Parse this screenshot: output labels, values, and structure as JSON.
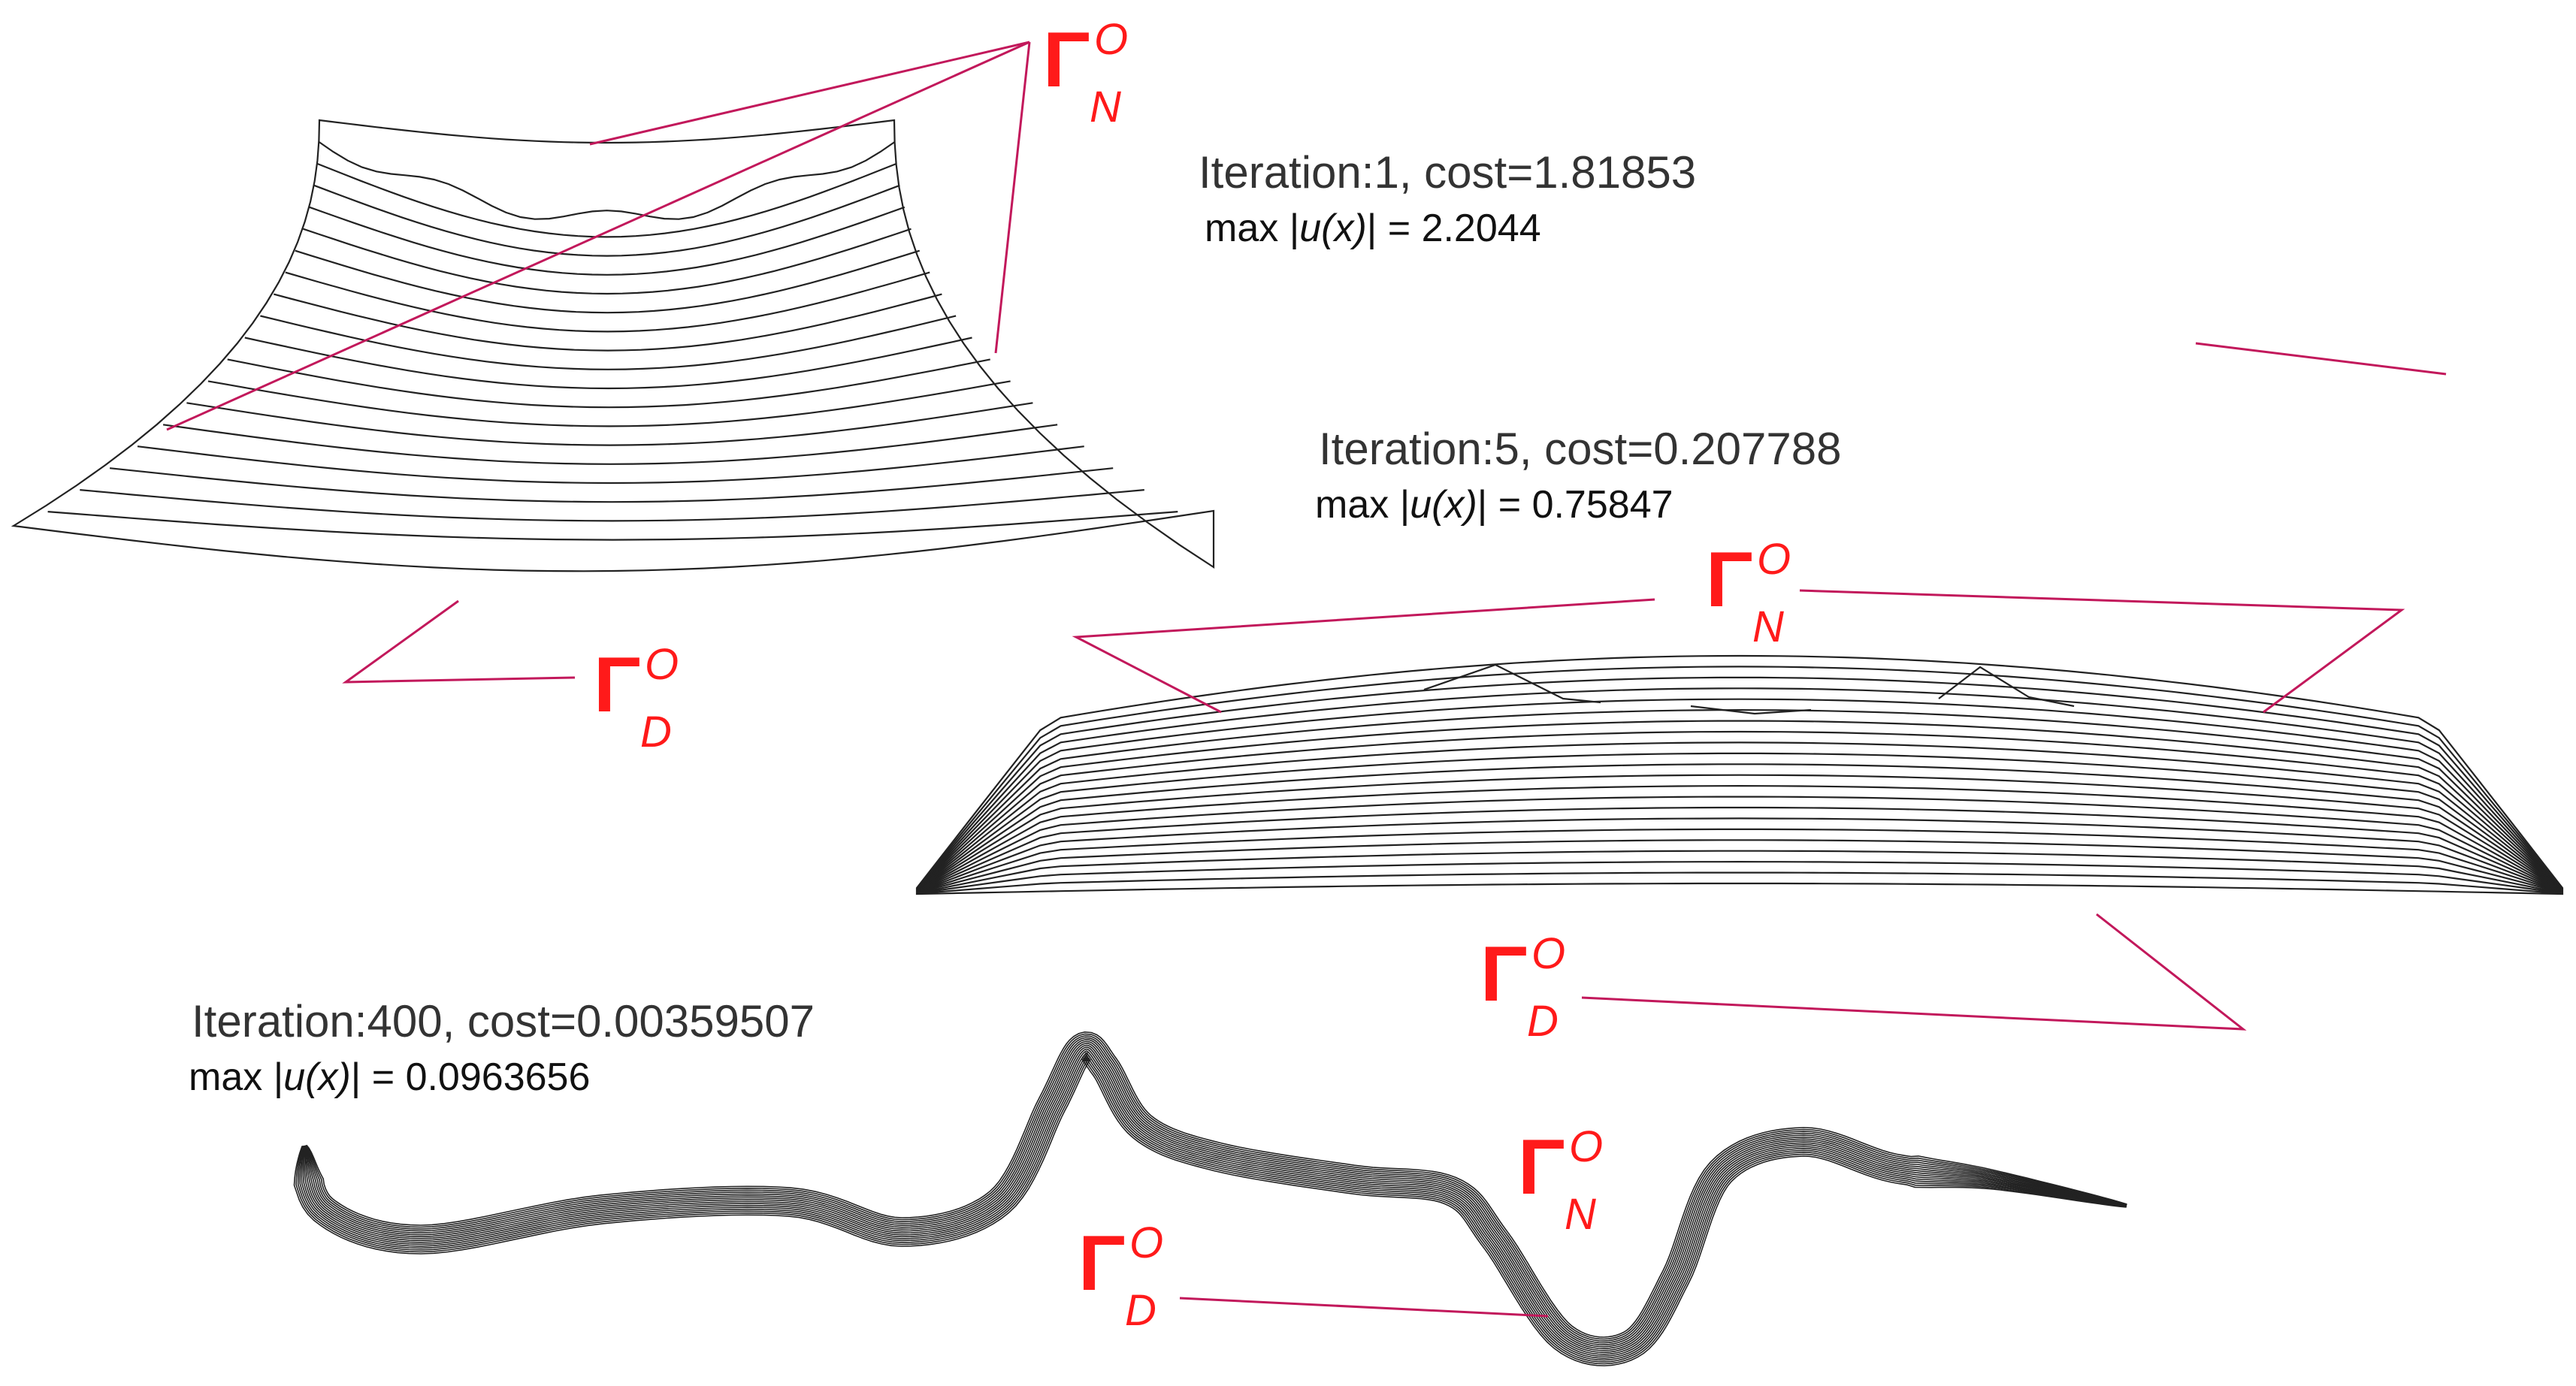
{
  "panels": [
    {
      "iteration_text": "Iteration:1, cost=1.81853",
      "max_prefix": "max",
      "max_fn": "u(x)",
      "max_value": "= 2.2044"
    },
    {
      "iteration_text": "Iteration:5, cost=0.207788",
      "max_prefix": "max",
      "max_fn": "u(x)",
      "max_value": "= 0.75847"
    },
    {
      "iteration_text": "Iteration:400, cost=0.00359507",
      "max_prefix": "max",
      "max_fn": "u(x)",
      "max_value": "= 0.0963656"
    }
  ],
  "boundary_labels": {
    "gamma_symbol": "Γ",
    "outer_superscript": "O",
    "neumann_subscript": "N",
    "dirichlet_subscript": "D"
  },
  "colors": {
    "mesh_stroke": "#222222",
    "leader_line": "#c2185b",
    "label_red": "#ff1a1a",
    "caption_text": "#333333"
  }
}
